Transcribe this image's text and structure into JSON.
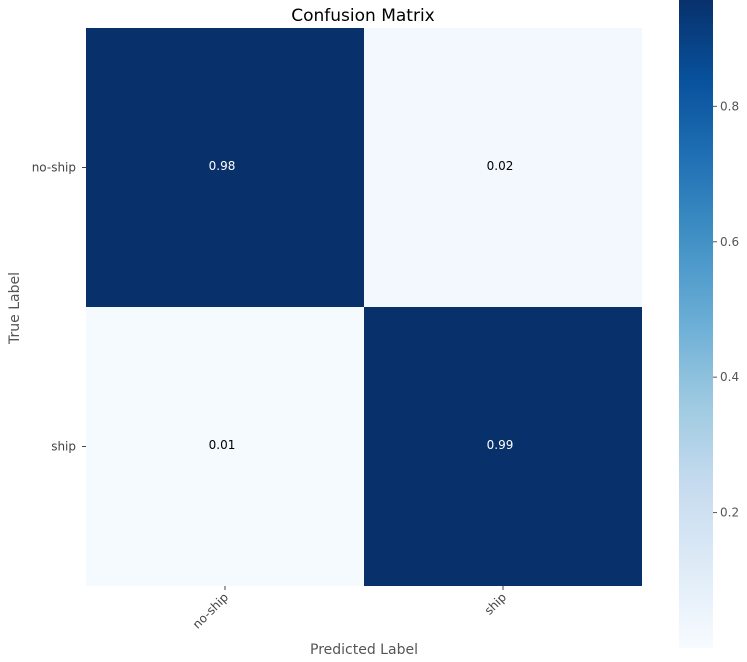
{
  "chart_data": {
    "type": "heatmap",
    "title": "Confusion Matrix",
    "xlabel": "Predicted Label",
    "ylabel": "True Label",
    "x_categories": [
      "no-ship",
      "ship"
    ],
    "y_categories": [
      "no-ship",
      "ship"
    ],
    "values": [
      [
        0.98,
        0.02
      ],
      [
        0.01,
        0.99
      ]
    ],
    "value_labels": [
      [
        "0.98",
        "0.02"
      ],
      [
        "0.01",
        "0.99"
      ]
    ],
    "colormap": "Blues",
    "colorbar": {
      "range": [
        0.0,
        0.96
      ],
      "ticks": [
        0.2,
        0.4,
        0.6,
        0.8
      ],
      "tick_labels": [
        "0.2",
        "0.4",
        "0.6",
        "0.8"
      ]
    },
    "grid": false,
    "colors": {
      "low": "#f7fbff",
      "high": "#08306b",
      "text_dark": "#000000",
      "text_light": "#ffffff"
    }
  }
}
